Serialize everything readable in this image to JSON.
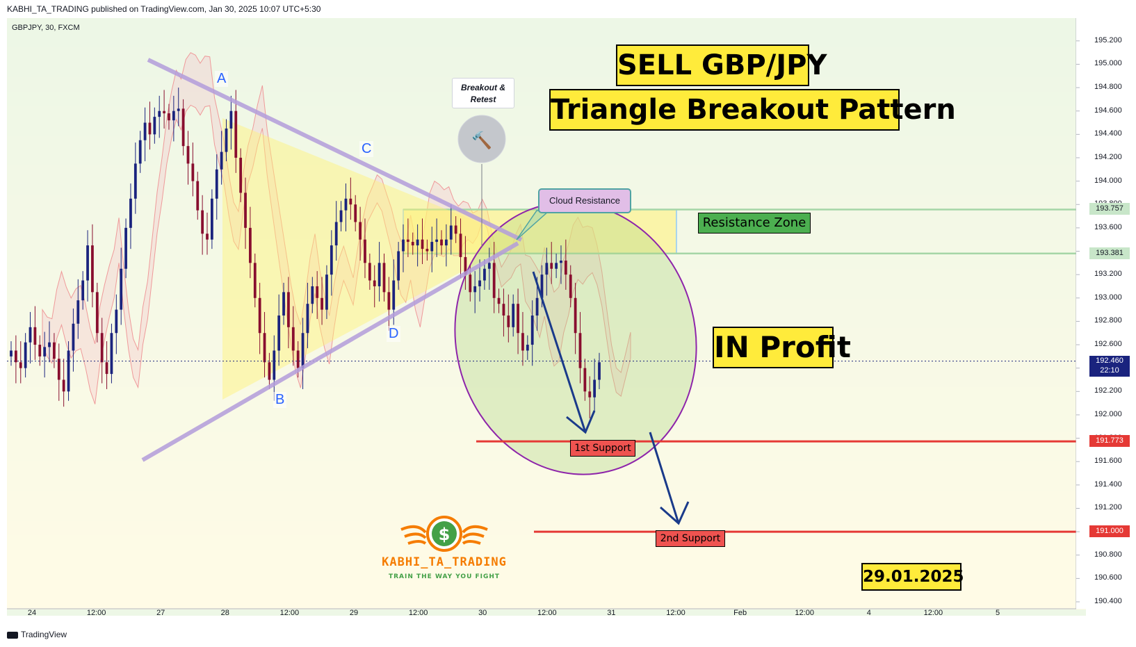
{
  "header": {
    "published_line": "KABHI_TA_TRADING published on TradingView.com, Jan 30, 2025 10:07 UTC+5:30",
    "symbol_line": "GBPJPY, 30, FXCM"
  },
  "footer": {
    "brand": "TradingView"
  },
  "annotations": {
    "title1": "SELL GBP/JPY",
    "title2": "Triangle Breakout Pattern",
    "in_profit": "IN Profit",
    "date": "29.01.2025",
    "resistance_zone": "Resistance Zone",
    "cloud_resistance": "Cloud Resistance",
    "breakout_retest": "Breakout & Retest",
    "support1": "1st Support",
    "support2": "2nd Support",
    "points": {
      "A": "A",
      "B": "B",
      "C": "C",
      "D": "D"
    }
  },
  "logo": {
    "name": "KABHI_TA_TRADING",
    "tagline": "TRAIN THE WAY YOU FIGHT",
    "symbol": "$"
  },
  "chart_data": {
    "type": "candlestick",
    "instrument": "GBPJPY",
    "timeframe": "30",
    "source": "FXCM",
    "ylim": [
      190.4,
      195.3
    ],
    "price_axis_ticks": [
      "195.200",
      "195.000",
      "194.800",
      "194.600",
      "194.400",
      "194.200",
      "194.000",
      "193.800",
      "193.600",
      "193.400",
      "193.200",
      "193.000",
      "192.800",
      "192.600",
      "192.400",
      "192.200",
      "192.000",
      "191.800",
      "191.600",
      "191.400",
      "191.200",
      "191.000",
      "190.800",
      "190.600",
      "190.400"
    ],
    "time_axis_ticks": [
      "24",
      "12:00",
      "27",
      "28",
      "12:00",
      "29",
      "12:00",
      "30",
      "12:00",
      "31",
      "12:00",
      "Feb",
      "12:00",
      "4",
      "12:00",
      "5"
    ],
    "last_price": {
      "value": "192.460",
      "countdown": "22:10"
    },
    "levels": [
      {
        "name": "resistance_top",
        "value": "193.757"
      },
      {
        "name": "resistance_bottom",
        "value": "193.381"
      },
      {
        "name": "support1",
        "value": "191.773"
      },
      {
        "name": "support2",
        "value": "191.000"
      }
    ],
    "triangle_points": {
      "A": 194.65,
      "B": 192.15,
      "C": 194.0,
      "D": 192.75
    },
    "closes": [
      192.55,
      192.45,
      192.4,
      192.62,
      192.75,
      192.6,
      192.5,
      192.58,
      192.62,
      192.48,
      192.3,
      192.2,
      192.55,
      192.78,
      192.98,
      193.15,
      193.45,
      193.05,
      192.7,
      192.45,
      192.35,
      192.7,
      192.9,
      193.25,
      193.6,
      193.85,
      194.15,
      194.35,
      194.5,
      194.4,
      194.55,
      194.6,
      194.58,
      194.52,
      194.6,
      194.62,
      194.3,
      194.15,
      194.0,
      193.75,
      193.55,
      193.5,
      193.85,
      194.1,
      194.25,
      194.45,
      194.6,
      194.2,
      193.9,
      193.6,
      193.3,
      193.0,
      192.7,
      192.45,
      192.3,
      192.55,
      192.85,
      193.05,
      192.75,
      192.55,
      192.4,
      192.7,
      192.95,
      193.1,
      193.0,
      192.9,
      193.2,
      193.45,
      193.65,
      193.75,
      193.85,
      193.8,
      193.65,
      193.5,
      193.3,
      193.15,
      193.1,
      193.3,
      193.05,
      192.9,
      193.15,
      193.4,
      193.5,
      193.48,
      193.45,
      193.5,
      193.42,
      193.4,
      193.48,
      193.5,
      193.45,
      193.5,
      193.62,
      193.55,
      193.35,
      193.2,
      193.05,
      193.1,
      193.15,
      193.25,
      193.3,
      193.0,
      192.95,
      192.85,
      192.75,
      192.95,
      192.7,
      192.55,
      192.6,
      192.85,
      193.0,
      193.2,
      193.3,
      193.25,
      193.3,
      193.32,
      193.2,
      193.0,
      192.7,
      192.4,
      192.2,
      192.15,
      192.3,
      192.45
    ]
  }
}
